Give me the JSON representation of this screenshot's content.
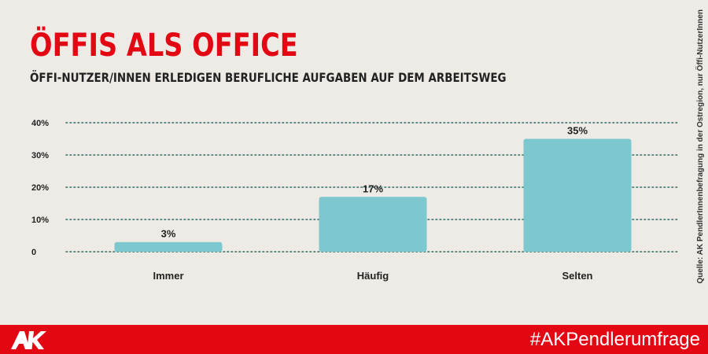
{
  "header": {
    "title": "ÖFFIS ALS OFFICE",
    "subtitle": "ÖFFI-NUTZER/INNEN ERLEDIGEN BERUFLICHE AUFGABEN AUF DEM ARBEITSWEG"
  },
  "source_note": "Quelle: AK PendlerInnenbefragung in der Ostregion, nur Öffi-NutzerInnen",
  "footer": {
    "logo_icon": "ak-logo-icon",
    "hashtag": "#AKPendlerumfrage"
  },
  "colors": {
    "accent": "#e30613",
    "bar": "#7dc8cf",
    "background": "#eeebe6",
    "grid": "#2e6b63"
  },
  "chart_data": {
    "type": "bar",
    "title": "ÖFFIS ALS OFFICE",
    "subtitle": "ÖFFI-NUTZER/INNEN ERLEDIGEN BERUFLICHE AUFGABEN AUF DEM ARBEITSWEG",
    "categories": [
      "Immer",
      "Häufig",
      "Selten"
    ],
    "values": [
      3,
      17,
      35
    ],
    "data_labels": [
      "3%",
      "17%",
      "35%"
    ],
    "y_ticks": [
      0,
      10,
      20,
      30,
      40
    ],
    "y_tick_labels": [
      "0",
      "10%",
      "20%",
      "30%",
      "40%"
    ],
    "ylim": [
      0,
      40
    ],
    "grid": true,
    "grid_style": "dotted",
    "legend": "none",
    "xlabel": "",
    "ylabel": ""
  }
}
